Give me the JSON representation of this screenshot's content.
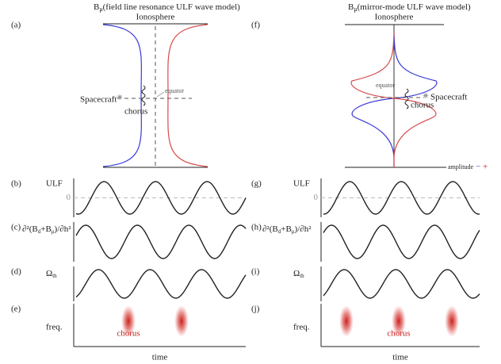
{
  "left": {
    "title": {
      "symbol": "B",
      "subscript": "μ",
      "text": "(field line resonance ULF wave model)"
    },
    "label": "(a)",
    "ionosphere": "Ionosphere",
    "equator": "equator",
    "spacecraft": "Spacecraft",
    "chorus": "chorus"
  },
  "right": {
    "title": {
      "symbol": "B",
      "subscript": "μ",
      "text": "(mirror-mode ULF wave model)"
    },
    "label": "(f)",
    "ionosphere": "Ionosphere",
    "equator": "equator",
    "spacecraft": "Spacecraft",
    "chorus": "chorus",
    "amplitude": "amplitude",
    "minus": "−",
    "plus": "+"
  },
  "left_panels": [
    {
      "label": "(b)",
      "ylabel": "ULF",
      "zero": "0"
    },
    {
      "label": "(c)",
      "ylabel": {
        "prefix": "∂²(B",
        "sub1": "d",
        "mid": "+B",
        "sub2": "μ",
        "suffix": ")/∂h²"
      }
    },
    {
      "label": "(d)",
      "ylabel": {
        "symbol": "Ω",
        "subscript": "th"
      }
    },
    {
      "label": "(e)",
      "ylabel": "freq.",
      "chorus": "chorus",
      "xlabel": "time"
    }
  ],
  "right_panels": [
    {
      "label": "(g)",
      "ylabel": "ULF",
      "zero": "0"
    },
    {
      "label": "(h)",
      "ylabel": {
        "prefix": "∂²(B",
        "sub1": "d",
        "mid": "+B",
        "sub2": "μ",
        "suffix": ")/∂h²"
      }
    },
    {
      "label": "(i)",
      "ylabel": {
        "symbol": "Ω",
        "subscript": "th"
      }
    },
    {
      "label": "(j)",
      "ylabel": "freq.",
      "chorus": "chorus",
      "xlabel": "time"
    }
  ]
}
